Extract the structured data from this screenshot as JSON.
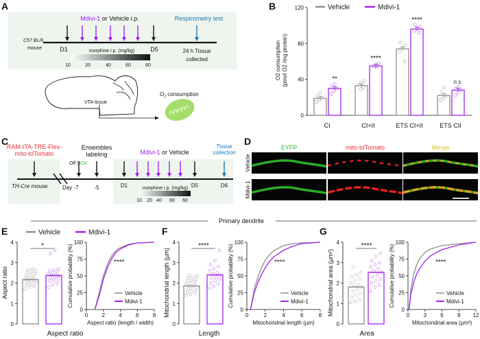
{
  "colors": {
    "vehicle": "#8c8c8c",
    "mdivi": "#a020f0",
    "panel_bg": "#eef5ee",
    "respirometry": "#1f77b4",
    "construct": "#e8323c",
    "dox": "#2bb32b",
    "merge": "#e8c020"
  },
  "panel_labels": [
    "A",
    "B",
    "C",
    "D",
    "E",
    "F",
    "G"
  ],
  "panelA": {
    "treatment_drug": "Mdivi-1",
    "treatment_rest": " or Vehicle i.p.",
    "respirometry": "Respirometry test",
    "strain_italic": "C57 BL/6",
    "strain_suffix": "mouse",
    "d1": "D1",
    "d5": "D5",
    "morphine": "morphine i.p. (mg/kg)",
    "dose_ticks": [
      "10",
      "20",
      "40",
      "60",
      "60"
    ],
    "tissue_line1": "24 h Tissue",
    "tissue_line2": "collected",
    "vta": "VTA tissue",
    "o2": "O",
    "o2_sub": "2",
    "o2_rest": " consumption"
  },
  "panelC": {
    "construct_line1": "RAM-tTA-TRE-Flex-",
    "construct_line2": "mito-tdTomato",
    "ensembles_line1": "Ensembles",
    "ensembles_line2": "labeling",
    "off": "Off ",
    "dox": "DOX",
    "treatment_drug": "Mdivi-1",
    "treatment_rest": " or Vehicle",
    "tissue_line1": "Tissue",
    "tissue_line2": "collection",
    "mouse_italic": "TH-Cre",
    "mouse_suffix": " mouse",
    "day": "Day -7",
    "minus5": "-5",
    "d1": "D1",
    "d5": "D5",
    "d6": "D6",
    "morphine": "morphine i.p. (mg/kg)",
    "dose_ticks": [
      "10",
      "20",
      "40",
      "60",
      "60"
    ]
  },
  "panelD": {
    "columns": [
      "EYFP",
      "mito-tdTomato",
      "Merge"
    ],
    "rows": [
      "Vehicle",
      "Mdivi-1"
    ]
  },
  "section_title": "Primary dendrite",
  "legend": {
    "vehicle": "Vehicle",
    "mdivi": "Mdivi-1"
  },
  "chart_data": [
    {
      "panel": "B",
      "type": "bar",
      "ylabel_line1": "O2 consumption",
      "ylabel_line2": "(pmol O2 /mg protein)",
      "ylim": [
        0,
        120
      ],
      "yticks": [
        "0",
        "40",
        "80",
        "120"
      ],
      "categories": [
        "CI",
        "CI+II",
        "ETS CI+II",
        "ETS CII"
      ],
      "series": [
        {
          "name": "Vehicle",
          "values": [
            19,
            33,
            74,
            22
          ],
          "points": [
            [
              15,
              17,
              20,
              22,
              25
            ],
            [
              29,
              31,
              34,
              36,
              38
            ],
            [
              60,
              71,
              75,
              78,
              81
            ],
            [
              17,
              19,
              22,
              26,
              31
            ]
          ]
        },
        {
          "name": "Mdivi-1",
          "values": [
            30,
            55,
            96,
            28
          ],
          "points": [
            [
              24,
              27,
              30,
              33,
              35
            ],
            [
              54,
              55,
              55,
              56,
              58
            ],
            [
              92,
              94,
              97,
              99,
              101
            ],
            [
              22,
              25,
              28,
              30,
              32
            ]
          ]
        }
      ],
      "significance": [
        "**",
        "****",
        "****",
        "n.s."
      ],
      "legend": "top"
    },
    {
      "panel": "E",
      "type": "bar",
      "ylabel": "Aspect ratio",
      "category_label": "Aspect ratio",
      "ylim": [
        0,
        4
      ],
      "yticks": [
        "0",
        "1",
        "2",
        "3",
        "4"
      ],
      "series": [
        {
          "name": "Vehicle",
          "value": 2.17,
          "points": [
            1.7,
            1.8,
            1.85,
            1.9,
            1.95,
            2.0,
            2.05,
            2.1,
            2.1,
            2.15,
            2.2,
            2.2,
            2.25,
            2.3,
            2.35,
            2.4,
            2.45,
            2.5,
            2.55,
            2.6,
            2.65,
            2.7
          ]
        },
        {
          "name": "Mdivi-1",
          "value": 2.37,
          "points": [
            1.8,
            1.9,
            2.0,
            2.1,
            2.15,
            2.2,
            2.25,
            2.3,
            2.35,
            2.4,
            2.4,
            2.45,
            2.5,
            2.55,
            2.6,
            2.65,
            2.7,
            3.45,
            3.6
          ]
        }
      ],
      "significance": "*"
    },
    {
      "panel": "E",
      "type": "line",
      "ylabel": "Cumulative probability (%)",
      "xlabel": "Aspect ratio (length / width)",
      "xlim": [
        0,
        8
      ],
      "xticks": [
        "0",
        "2",
        "4",
        "6",
        "8"
      ],
      "ylim": [
        0,
        100
      ],
      "yticks": [
        "0",
        "25",
        "50",
        "75",
        "100"
      ],
      "series": [
        {
          "name": "Vehicle",
          "x": [
            1,
            1.5,
            2,
            2.5,
            3,
            3.5,
            4,
            5,
            6,
            8
          ],
          "y": [
            0,
            25,
            50,
            68,
            80,
            88,
            92,
            97,
            99,
            100
          ]
        },
        {
          "name": "Mdivi-1",
          "x": [
            1,
            1.5,
            2,
            2.5,
            3,
            3.5,
            4,
            5,
            6,
            8
          ],
          "y": [
            0,
            20,
            45,
            63,
            76,
            85,
            90,
            96,
            99,
            100
          ]
        }
      ],
      "significance": "****",
      "legend": "bottom-right"
    },
    {
      "panel": "F",
      "type": "bar",
      "ylabel": "Mitochondrial length (µm)",
      "category_label": "Length",
      "ylim": [
        0,
        4
      ],
      "yticks": [
        "0",
        "1",
        "2",
        "3",
        "4"
      ],
      "series": [
        {
          "name": "Vehicle",
          "value": 1.86,
          "points": [
            1.4,
            1.45,
            1.5,
            1.55,
            1.6,
            1.65,
            1.7,
            1.75,
            1.8,
            1.85,
            1.9,
            1.95,
            2.0,
            2.05,
            2.1,
            2.15,
            2.2,
            2.25,
            2.3,
            2.35,
            2.4
          ]
        },
        {
          "name": "Mdivi-1",
          "value": 2.4,
          "points": [
            1.75,
            1.85,
            1.95,
            2.0,
            2.1,
            2.2,
            2.25,
            2.3,
            2.4,
            2.45,
            2.5,
            2.6,
            2.7,
            2.8,
            2.9,
            3.1,
            3.6
          ]
        }
      ],
      "significance": "****"
    },
    {
      "panel": "F",
      "type": "line",
      "ylabel": "Cumulative probability (%)",
      "xlabel": "Mitochondrial length (µm)",
      "xlim": [
        0,
        8
      ],
      "xticks": [
        "0",
        "2",
        "4",
        "6",
        "8"
      ],
      "ylim": [
        0,
        100
      ],
      "yticks": [
        "0",
        "25",
        "50",
        "75",
        "100"
      ],
      "series": [
        {
          "name": "Vehicle",
          "x": [
            0.4,
            0.8,
            1.2,
            1.6,
            2,
            2.5,
            3,
            4,
            5,
            6,
            8
          ],
          "y": [
            0,
            30,
            48,
            62,
            73,
            82,
            88,
            95,
            98,
            99,
            100
          ]
        },
        {
          "name": "Mdivi-1",
          "x": [
            0.4,
            0.8,
            1.2,
            1.6,
            2,
            2.5,
            3,
            4,
            5,
            6,
            8
          ],
          "y": [
            0,
            25,
            40,
            52,
            62,
            72,
            79,
            88,
            94,
            98,
            100
          ]
        }
      ],
      "significance": "****",
      "legend": "bottom-right"
    },
    {
      "panel": "G",
      "type": "bar",
      "ylabel": "Mitochondrial area (µm²)",
      "category_label": "Area",
      "ylim": [
        0,
        4
      ],
      "yticks": [
        "0",
        "1",
        "2",
        "3",
        "4"
      ],
      "series": [
        {
          "name": "Vehicle",
          "value": 1.81,
          "points": [
            1.05,
            1.1,
            1.2,
            1.3,
            1.4,
            1.5,
            1.6,
            1.7,
            1.8,
            1.85,
            1.9,
            2.0,
            2.1,
            2.2,
            2.3,
            2.4,
            2.5,
            2.8
          ]
        },
        {
          "name": "Mdivi-1",
          "value": 2.53,
          "points": [
            1.6,
            1.8,
            1.9,
            2.0,
            2.1,
            2.2,
            2.3,
            2.4,
            2.5,
            2.6,
            2.7,
            2.8,
            2.9,
            3.0,
            3.1,
            3.3,
            3.45
          ]
        }
      ],
      "significance": "****"
    },
    {
      "panel": "G",
      "type": "line",
      "ylabel": "Cumulative probability (%)",
      "xlabel": "Mitochondrial area (µm²)",
      "xlim": [
        0,
        12
      ],
      "xticks": [
        "0",
        "3",
        "6",
        "9",
        "12"
      ],
      "ylim": [
        0,
        100
      ],
      "yticks": [
        "0",
        "25",
        "50",
        "75",
        "100"
      ],
      "series": [
        {
          "name": "Vehicle",
          "x": [
            0.2,
            0.5,
            1,
            1.5,
            2,
            3,
            4,
            6,
            9,
            12
          ],
          "y": [
            0,
            30,
            52,
            66,
            75,
            85,
            90,
            95,
            98,
            100
          ]
        },
        {
          "name": "Mdivi-1",
          "x": [
            0.2,
            0.5,
            1,
            1.5,
            2,
            3,
            4,
            6,
            9,
            12
          ],
          "y": [
            0,
            22,
            40,
            52,
            60,
            72,
            80,
            89,
            96,
            100
          ]
        }
      ],
      "significance": "****",
      "legend": "bottom-right"
    }
  ]
}
